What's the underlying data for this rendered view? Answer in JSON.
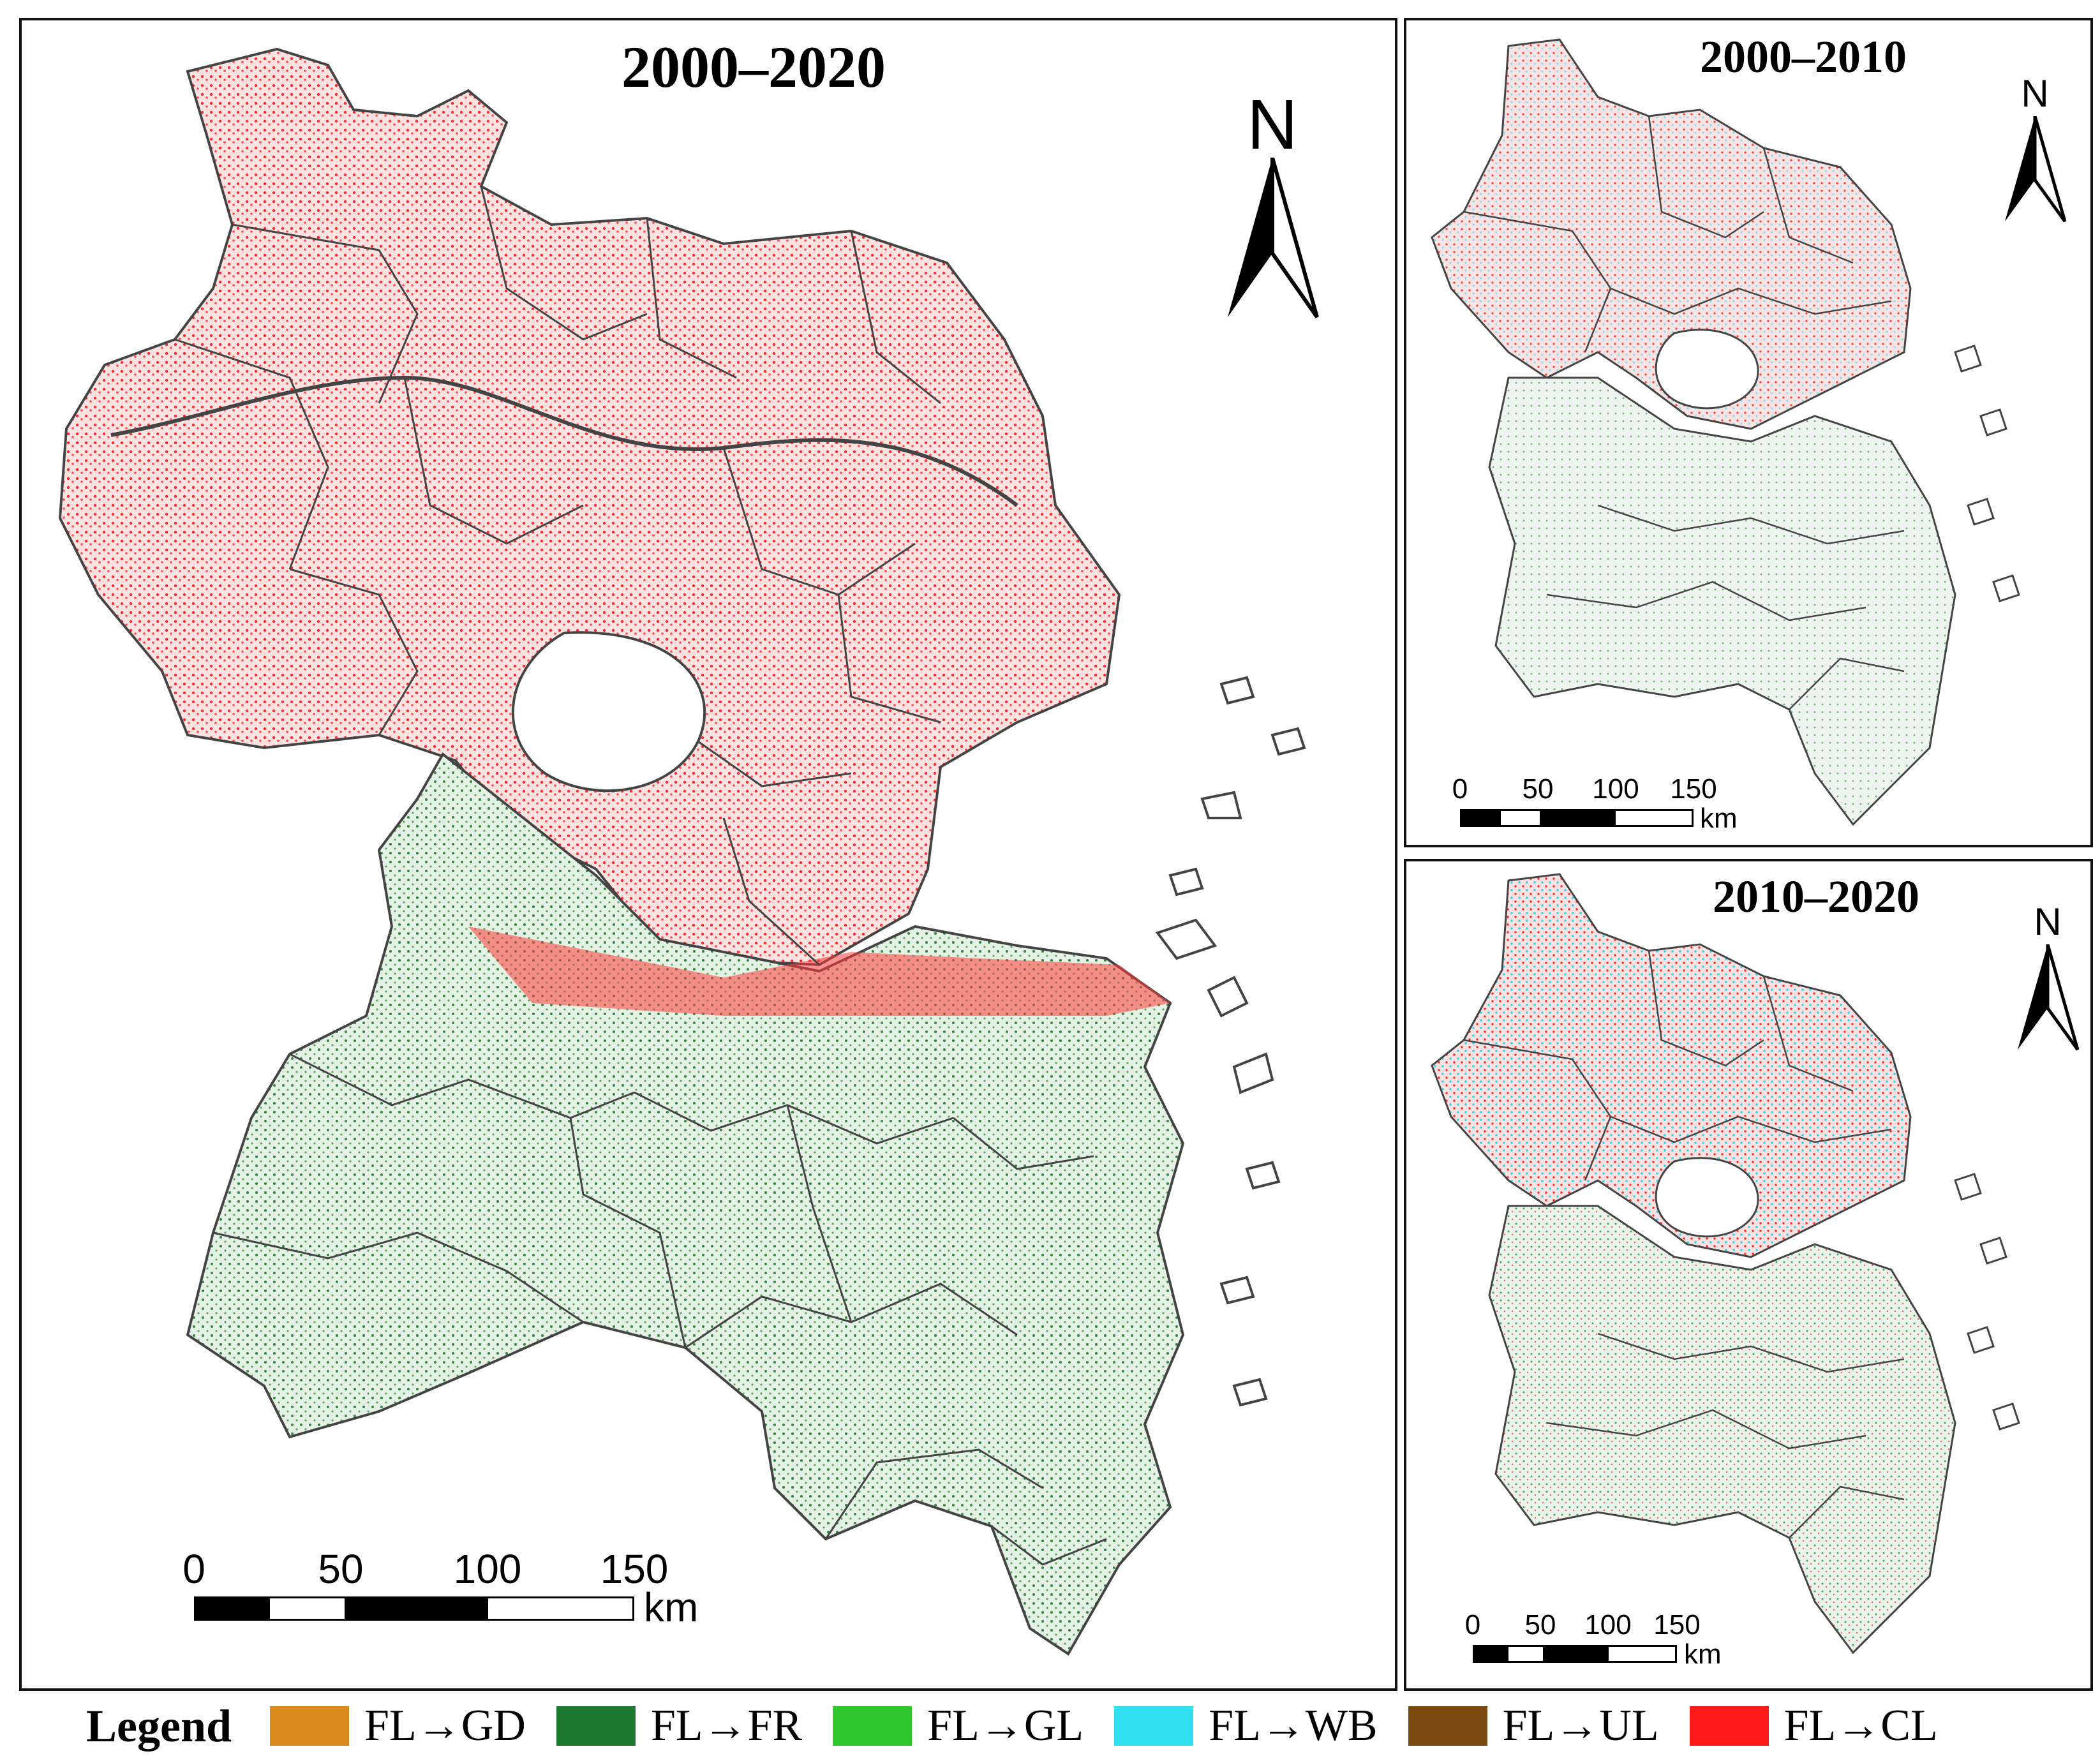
{
  "panels": {
    "main": {
      "title": "2000–2020",
      "north_label": "N",
      "scale_ticks": [
        "0",
        "50",
        "100",
        "150"
      ],
      "scale_unit": "km"
    },
    "top_right": {
      "title": "2000–2010",
      "north_label": "N",
      "scale_ticks": [
        "0",
        "50",
        "100",
        "150"
      ],
      "scale_unit": "km"
    },
    "bottom_right": {
      "title": "2010–2020",
      "north_label": "N",
      "scale_ticks": [
        "0",
        "50",
        "100",
        "150"
      ],
      "scale_unit": "km"
    }
  },
  "legend": {
    "title": "Legend",
    "items": [
      {
        "label": "FL→GD",
        "color": "#d98a1c"
      },
      {
        "label": "FL→FR",
        "color": "#1d7a30"
      },
      {
        "label": "FL→GL",
        "color": "#2ec82e"
      },
      {
        "label": "FL→WB",
        "color": "#2ee0f0"
      },
      {
        "label": "FL→UL",
        "color": "#7a4a10"
      },
      {
        "label": "FL→CL",
        "color": "#ff1a1a"
      }
    ]
  },
  "colors": {
    "frame": "#111111",
    "boundary": "#444444",
    "cropland_tint": "#fbd6d6",
    "forest_tint": "#d9ecd9",
    "lake": "#ffffff"
  }
}
